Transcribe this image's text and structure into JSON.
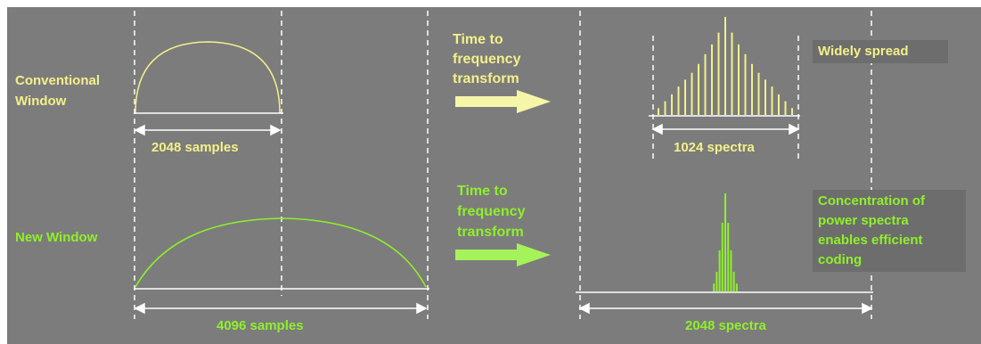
{
  "colors": {
    "background": "#7c7c7c",
    "conventional": "#f3f08a",
    "new": "#8ef02a",
    "guides": "#ffffff",
    "label_box": "#6d6d6d"
  },
  "icons": [
    "right-arrow-icon"
  ],
  "conventional": {
    "window_label": "Conventional\nWindow",
    "samples_label": "2048 samples",
    "transform_label": "Time to\nfrequency\ntransform",
    "spectra_label": "1024 spectra",
    "result_label": "Widely spread",
    "spectrum_bars": [
      0.07,
      0.14,
      0.21,
      0.29,
      0.36,
      0.43,
      0.52,
      0.62,
      0.72,
      0.84,
      1.0,
      0.84,
      0.72,
      0.62,
      0.52,
      0.43,
      0.36,
      0.29,
      0.21,
      0.14,
      0.07
    ]
  },
  "new": {
    "window_label": "New Window",
    "samples_label": "4096 samples",
    "transform_label": "Time to\nfrequency\ntransform",
    "spectra_label": "2048 spectra",
    "result_label": "Concentration of\npower spectra\nenables efficient\ncoding",
    "spectrum_bars": [
      0.08,
      0.2,
      0.42,
      0.7,
      1.0,
      0.7,
      0.42,
      0.2,
      0.08
    ]
  }
}
